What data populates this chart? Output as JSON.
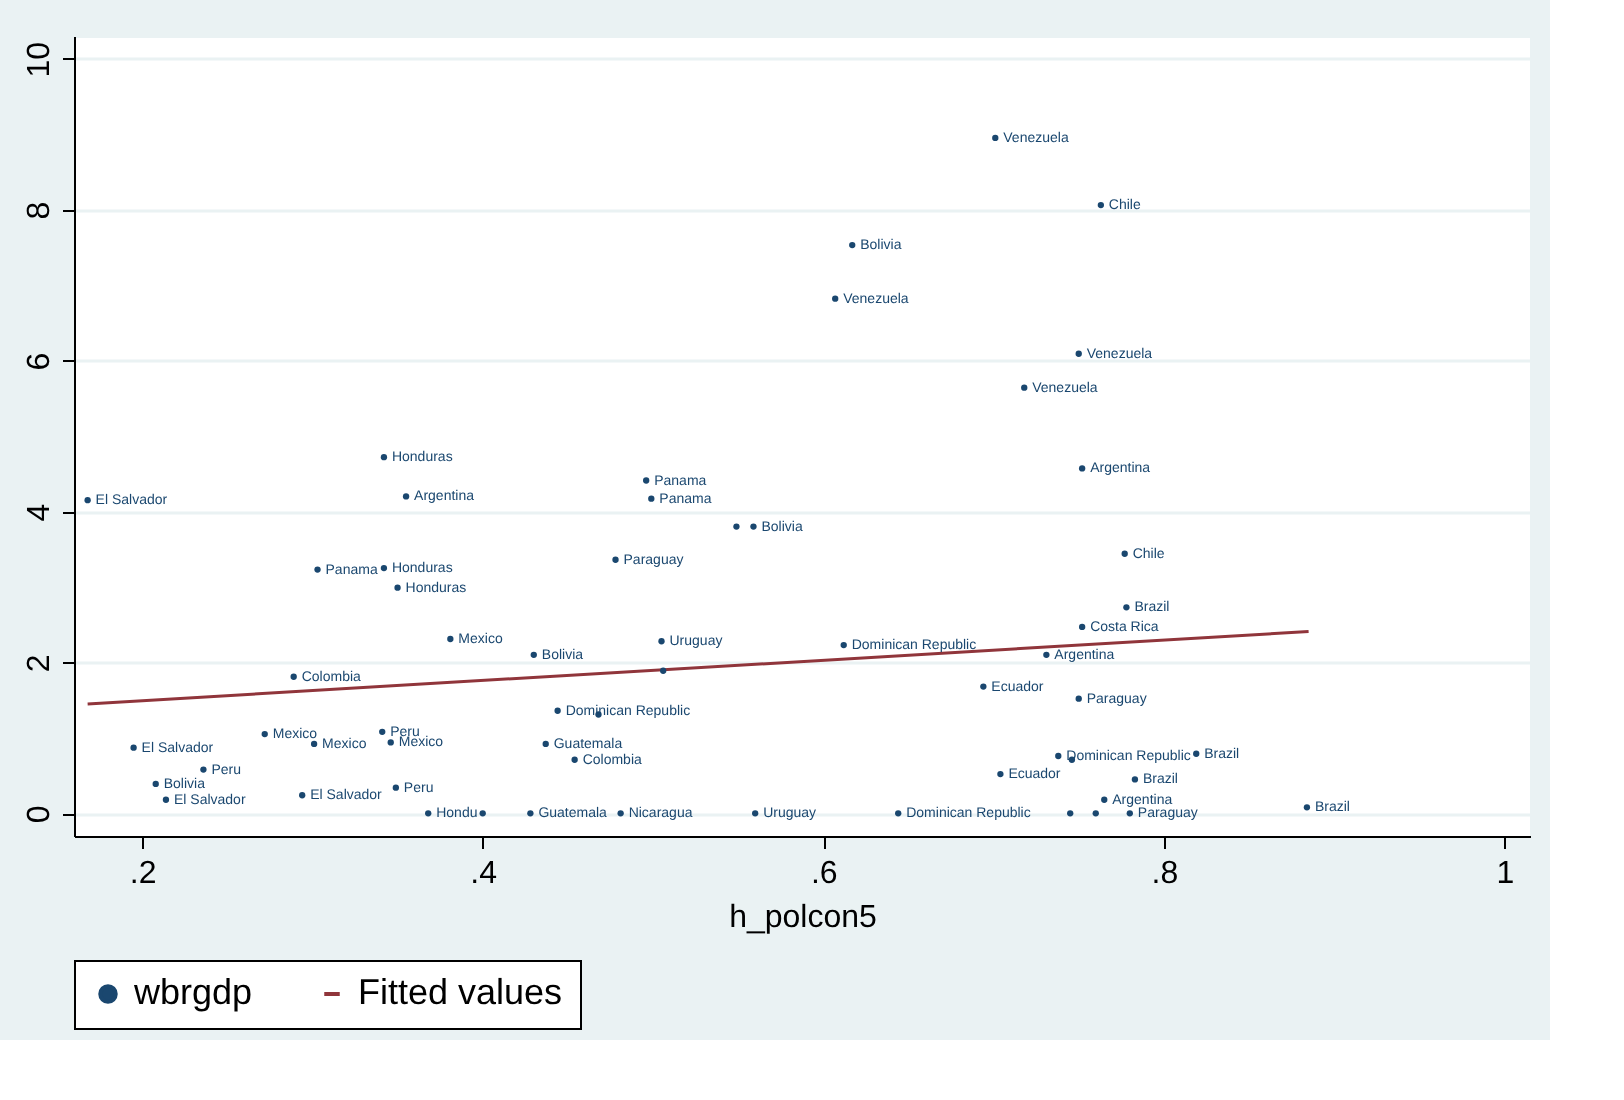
{
  "chart_data": {
    "type": "scatter",
    "xlabel": "h_polcon5",
    "xlim": [
      0.16,
      1.015
    ],
    "ylim": [
      -0.3,
      10.3
    ],
    "xticks": [
      {
        "value": 0.2,
        "label": ".2"
      },
      {
        "value": 0.4,
        "label": ".4"
      },
      {
        "value": 0.6,
        "label": ".6"
      },
      {
        "value": 0.8,
        "label": ".8"
      },
      {
        "value": 1,
        "label": "1"
      }
    ],
    "yticks": [
      0,
      2,
      4,
      6,
      8,
      10
    ],
    "grid": "y",
    "legend": "bottom",
    "series": [
      {
        "name": "wbrgdp",
        "type": "scatter",
        "color": "#1a476f",
        "marker": "circle",
        "x": [
          0.168,
          0.342,
          0.355,
          0.496,
          0.499,
          0.549,
          0.559,
          0.478,
          0.303,
          0.342,
          0.35,
          0.381,
          0.43,
          0.505,
          0.506,
          0.289,
          0.444,
          0.468,
          0.272,
          0.195,
          0.301,
          0.341,
          0.346,
          0.236,
          0.208,
          0.214,
          0.294,
          0.349,
          0.437,
          0.454,
          0.368,
          0.4,
          0.428,
          0.481,
          0.56,
          0.644,
          0.701,
          0.763,
          0.617,
          0.607,
          0.75,
          0.718,
          0.752,
          0.777,
          0.778,
          0.752,
          0.731,
          0.612,
          0.694,
          0.75,
          0.738,
          0.746,
          0.819,
          0.704,
          0.783,
          0.765,
          0.745,
          0.76,
          0.78,
          0.884
        ],
        "values": [
          4.15,
          4.72,
          4.2,
          4.41,
          4.17,
          3.8,
          3.8,
          3.36,
          3.23,
          3.25,
          2.99,
          2.31,
          2.1,
          2.28,
          1.89,
          1.81,
          1.36,
          1.31,
          1.05,
          0.87,
          0.92,
          1.08,
          0.94,
          0.58,
          0.39,
          0.18,
          0.24,
          0.34,
          0.92,
          0.71,
          0,
          0,
          0,
          0,
          0,
          0,
          8.95,
          8.06,
          7.53,
          6.82,
          6.09,
          5.64,
          4.57,
          3.44,
          2.73,
          2.47,
          2.1,
          2.23,
          1.68,
          1.52,
          0.76,
          0.71,
          0.79,
          0.52,
          0.45,
          0.18,
          0,
          0,
          0,
          0.08
        ],
        "value_labels": [
          "El Salvador",
          "Honduras",
          "Argentina",
          "Panama",
          "Panama",
          null,
          "Bolivia",
          "Paraguay",
          "Panama",
          "Honduras",
          "Honduras",
          "Mexico",
          "Bolivia",
          "Uruguay",
          null,
          "Colombia",
          "Dominican Republic",
          null,
          "Mexico",
          "El Salvador",
          "Mexico",
          "Peru",
          "Mexico",
          "Peru",
          "Bolivia",
          "El Salvador",
          "El Salvador",
          "Peru",
          "Guatemala",
          "Colombia",
          "Hondu",
          null,
          "Guatemala",
          "Nicaragua",
          "Uruguay",
          "Dominican Republic",
          "Venezuela",
          "Chile",
          "Bolivia",
          "Venezuela",
          "Venezuela",
          "Venezuela",
          "Argentina",
          "Chile",
          "Brazil",
          "Costa Rica",
          "Argentina",
          "Dominican Republic",
          "Ecuador",
          "Paraguay",
          "Dominican Republic",
          null,
          "Brazil",
          "Ecuador",
          "Brazil",
          "Argentina",
          null,
          null,
          "Paraguay",
          "Brazil"
        ]
      },
      {
        "name": "Fitted values",
        "type": "line",
        "color": "#90353b",
        "line_style": "solid",
        "marker": "none",
        "x": [
          0.168,
          0.885
        ],
        "values": [
          1.45,
          2.41
        ]
      }
    ]
  }
}
